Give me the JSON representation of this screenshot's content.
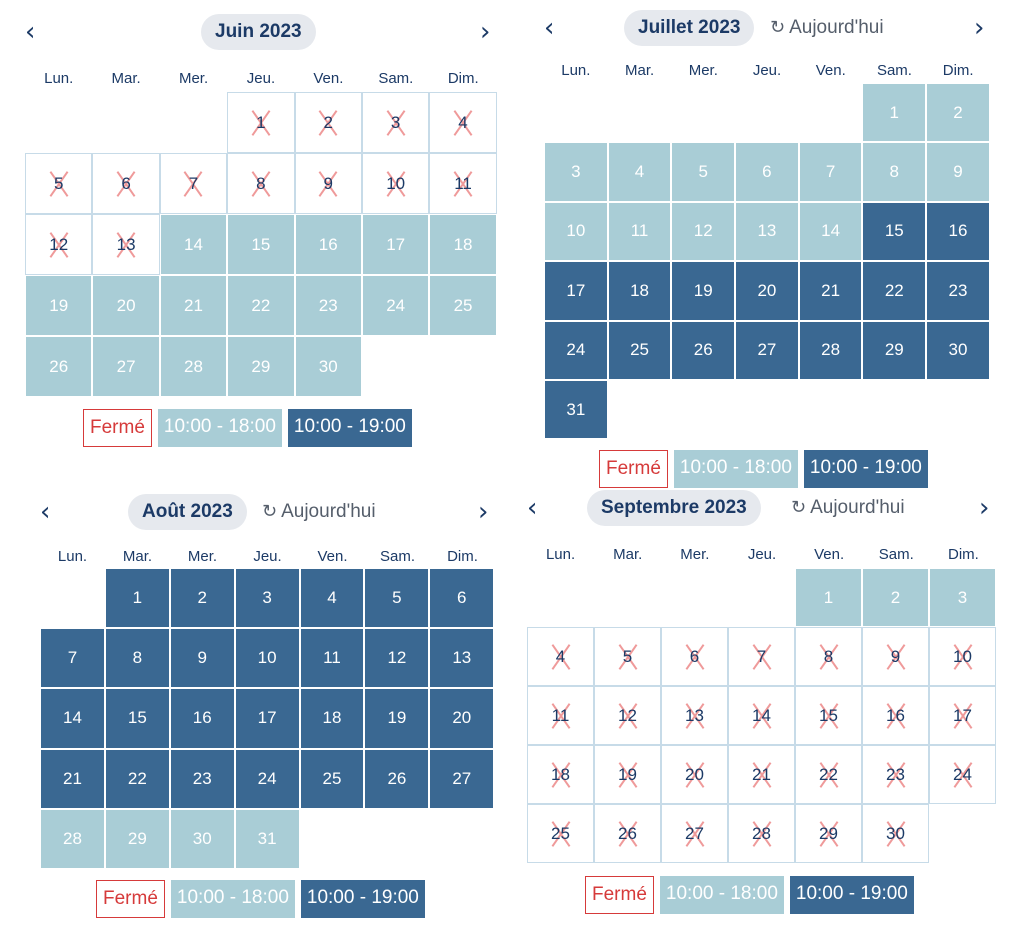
{
  "days_of_week": [
    "Lun.",
    "Mar.",
    "Mer.",
    "Jeu.",
    "Ven.",
    "Sam.",
    "Dim."
  ],
  "legend": {
    "closed": "Fermé",
    "light": "10:00 - 18:00",
    "dark": "10:00 - 19:00"
  },
  "today_label": "Aujourd'hui",
  "colors": {
    "light": "#a9cdd6",
    "dark": "#3a6892",
    "closed_border": "#d63a3a",
    "text": "#1c3a66"
  },
  "calendars": [
    {
      "month": "Juin 2023",
      "show_today": false,
      "first_weekday": 3,
      "days": [
        "closed",
        "closed",
        "closed",
        "closed",
        "closed",
        "closed",
        "closed",
        "closed",
        "closed",
        "closed",
        "closed",
        "closed",
        "closed",
        "light",
        "light",
        "light",
        "light",
        "light",
        "light",
        "light",
        "light",
        "light",
        "light",
        "light",
        "light",
        "light",
        "light",
        "light",
        "light",
        "light"
      ]
    },
    {
      "month": "Juillet 2023",
      "show_today": true,
      "first_weekday": 5,
      "days": [
        "light",
        "light",
        "light",
        "light",
        "light",
        "light",
        "light",
        "light",
        "light",
        "light",
        "light",
        "light",
        "light",
        "light",
        "dark",
        "dark",
        "dark",
        "dark",
        "dark",
        "dark",
        "dark",
        "dark",
        "dark",
        "dark",
        "dark",
        "dark",
        "dark",
        "dark",
        "dark",
        "dark",
        "dark"
      ]
    },
    {
      "month": "Août 2023",
      "show_today": true,
      "first_weekday": 1,
      "days": [
        "dark",
        "dark",
        "dark",
        "dark",
        "dark",
        "dark",
        "dark",
        "dark",
        "dark",
        "dark",
        "dark",
        "dark",
        "dark",
        "dark",
        "dark",
        "dark",
        "dark",
        "dark",
        "dark",
        "dark",
        "dark",
        "dark",
        "dark",
        "dark",
        "dark",
        "dark",
        "dark",
        "light",
        "light",
        "light",
        "light"
      ]
    },
    {
      "month": "Septembre 2023",
      "show_today": true,
      "first_weekday": 4,
      "days": [
        "light",
        "light",
        "light",
        "closed",
        "closed",
        "closed",
        "closed",
        "closed",
        "closed",
        "closed",
        "closed",
        "closed",
        "closed",
        "closed",
        "closed",
        "closed",
        "closed",
        "closed",
        "closed",
        "closed",
        "closed",
        "closed",
        "closed",
        "closed",
        "closed",
        "closed",
        "closed",
        "closed",
        "closed",
        "closed"
      ]
    }
  ]
}
